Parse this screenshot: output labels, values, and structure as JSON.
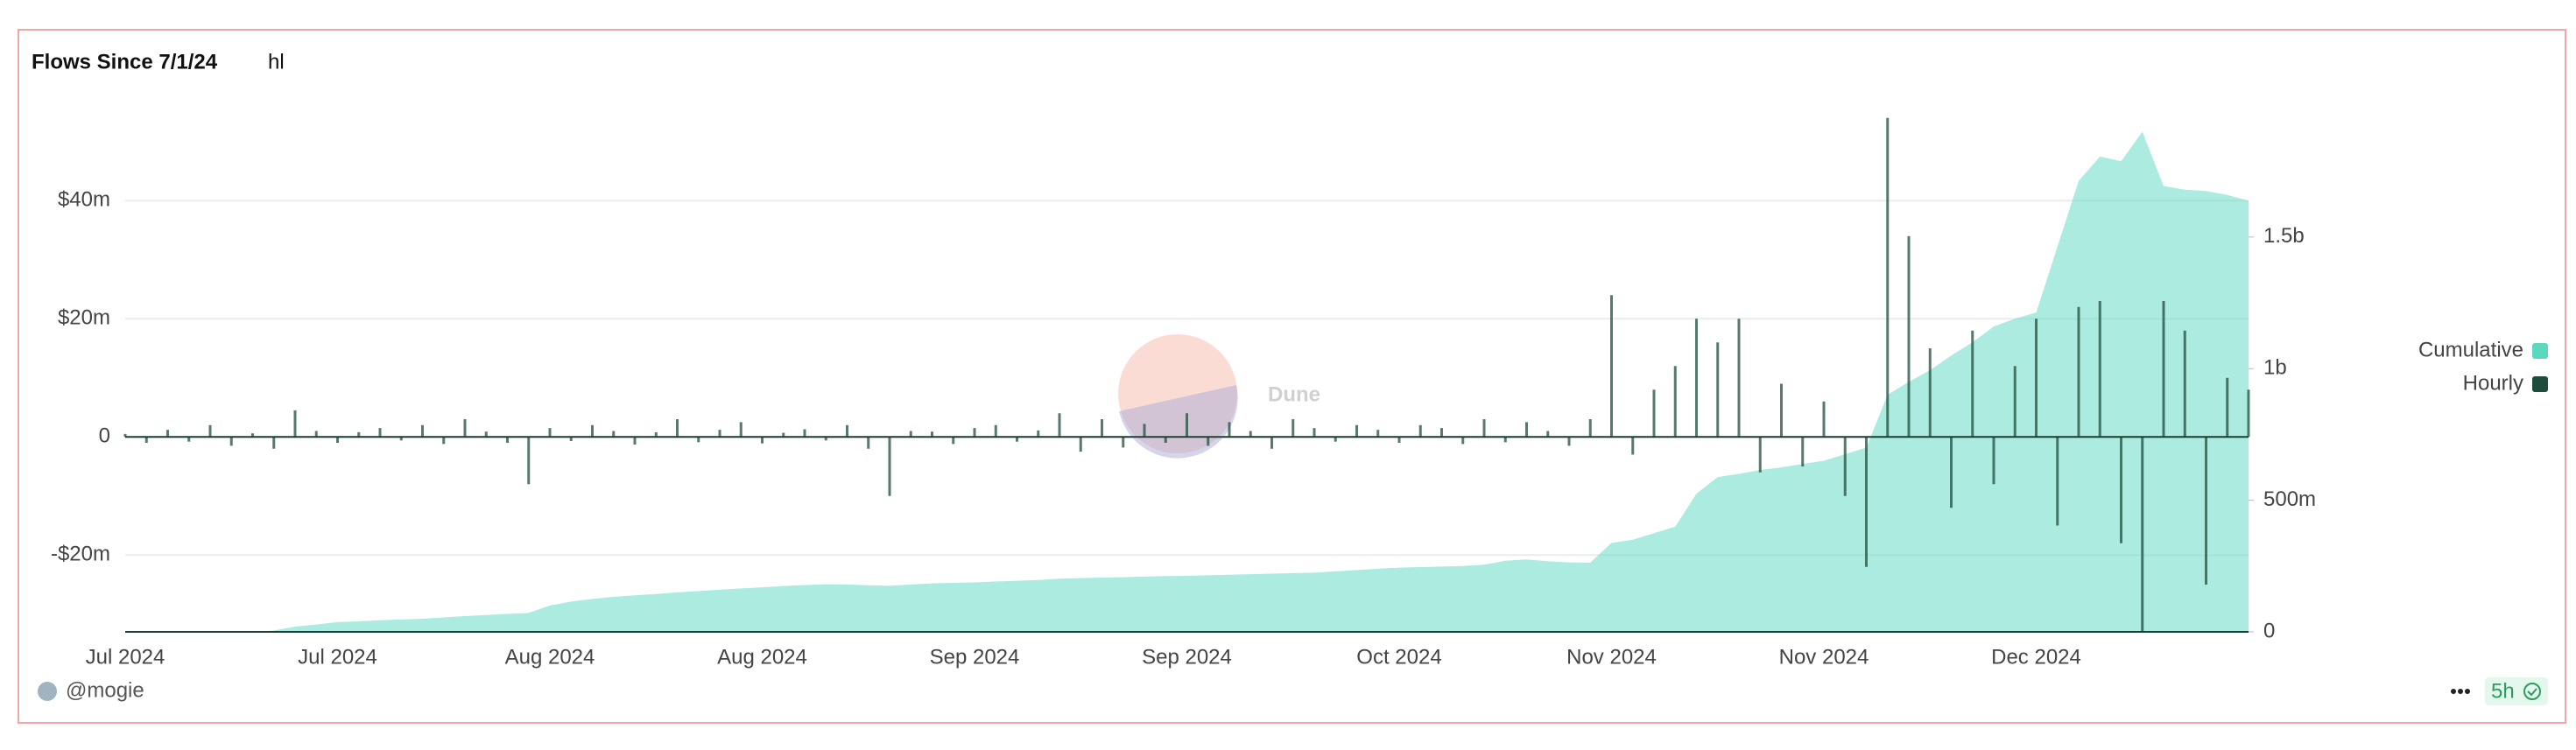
{
  "chart_data": {
    "type": "combo",
    "title": "Flows Since 7/1/24",
    "subtitle": "hl",
    "categories": [
      "Jul 2024",
      null,
      null,
      null,
      null,
      null,
      null,
      null,
      null,
      null,
      "Jul 2024",
      null,
      null,
      null,
      null,
      null,
      null,
      null,
      null,
      null,
      "Aug 2024",
      null,
      null,
      null,
      null,
      null,
      null,
      null,
      null,
      null,
      "Aug 2024",
      null,
      null,
      null,
      null,
      null,
      null,
      null,
      null,
      null,
      "Sep 2024",
      null,
      null,
      null,
      null,
      null,
      null,
      null,
      null,
      null,
      "Sep 2024",
      null,
      null,
      null,
      null,
      null,
      null,
      null,
      null,
      null,
      "Oct 2024",
      null,
      null,
      null,
      null,
      null,
      null,
      null,
      null,
      null,
      "Nov 2024",
      null,
      null,
      null,
      null,
      null,
      null,
      null,
      null,
      null,
      "Nov 2024",
      null,
      null,
      null,
      null,
      null,
      null,
      null,
      null,
      null,
      "Dec 2024",
      null,
      null,
      null,
      null,
      null,
      null,
      null,
      null,
      null,
      null
    ],
    "series": [
      {
        "name": "Cumulative",
        "type": "area",
        "axis": "y2",
        "color": "#5ad8c0",
        "values": [
          0,
          0,
          0,
          0,
          0,
          0,
          0,
          5,
          20,
          28,
          37,
          40,
          44,
          47,
          50,
          55,
          60,
          64,
          68,
          72,
          100,
          115,
          125,
          133,
          139,
          144,
          150,
          155,
          160,
          165,
          169,
          174,
          178,
          181,
          180,
          177,
          175,
          180,
          184,
          186,
          188,
          191,
          194,
          197,
          202,
          204,
          206,
          208,
          210,
          212,
          213,
          215,
          217,
          219,
          221,
          223,
          225,
          230,
          235,
          240,
          244,
          246,
          248,
          250,
          255,
          270,
          275,
          268,
          264,
          263,
          338,
          350,
          375,
          400,
          525,
          588,
          600,
          615,
          625,
          638,
          650,
          675,
          700,
          900,
          950,
          994,
          1050,
          1100,
          1160,
          1190,
          1213,
          1463,
          1713,
          1806,
          1788,
          1900,
          1694,
          1680,
          1675,
          1660,
          1638
        ]
      },
      {
        "name": "Hourly",
        "type": "bar",
        "color": "#1f4d3b",
        "values": [
          0.5,
          -1,
          1.2,
          -0.8,
          2,
          -1.5,
          0.6,
          -2,
          4.5,
          1,
          -1,
          0.8,
          1.5,
          -0.6,
          2,
          -1.2,
          3,
          0.9,
          -1,
          -8,
          1.5,
          -0.7,
          2,
          1,
          -1.3,
          0.8,
          3,
          -0.9,
          1.2,
          2.5,
          -1.1,
          0.7,
          1.3,
          -0.6,
          2,
          -2,
          -10,
          1,
          0.9,
          -1.2,
          1.5,
          2,
          -0.8,
          1.1,
          4,
          -2.5,
          3,
          -1.8,
          2.2,
          -1,
          4,
          -1.5,
          2.5,
          1,
          -2,
          3,
          1.5,
          -0.8,
          2,
          1.2,
          -1,
          2,
          1.5,
          -1.2,
          3,
          -0.9,
          2.5,
          1,
          -1.5,
          3,
          24,
          -3,
          8,
          12,
          20,
          16,
          20,
          -6,
          9,
          -5,
          6,
          -10,
          -22,
          54,
          34,
          15,
          -12,
          18,
          -8,
          12,
          20,
          -15,
          22,
          23,
          -18,
          -33,
          23,
          18,
          -25,
          10,
          8
        ]
      }
    ],
    "ylim": [
      -33,
      55
    ],
    "yticks": [
      {
        "value": -20,
        "label": "-$20m"
      },
      0,
      {
        "value": 20,
        "label": "$20m"
      },
      {
        "value": 40,
        "label": "$40m"
      }
    ],
    "y2lim": [
      0,
      1975
    ],
    "y2ticks": [
      0,
      {
        "value": 500,
        "label": "500m"
      },
      {
        "value": 1000,
        "label": "1b"
      },
      {
        "value": 1500,
        "label": "1.5b"
      }
    ],
    "grid": true,
    "legend": "right"
  },
  "watermark": "Dune",
  "footer": {
    "author": "@mogie",
    "updated": "5h"
  }
}
